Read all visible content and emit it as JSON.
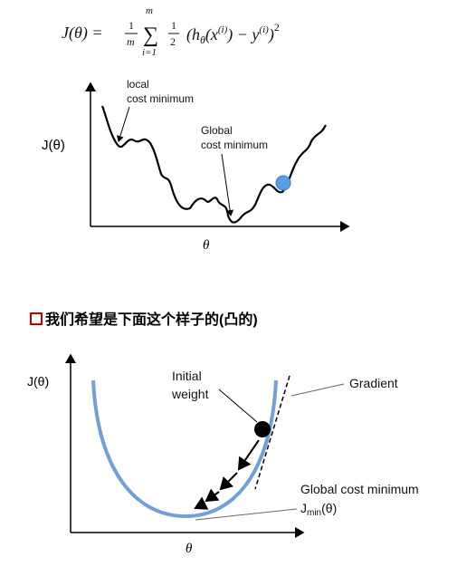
{
  "formula": {
    "lhs": "J(θ) =",
    "frac_num": "1",
    "frac_den": "m",
    "sum": "∑",
    "sum_upper": "m",
    "sum_lower": "i=1",
    "half_num": "1",
    "half_den": "2",
    "body": "(h",
    "body_sub": "θ",
    "body2": "(x",
    "sup1": "(i)",
    "body3": ") − y",
    "sup2": "(i)",
    "body4": ")",
    "power": "2"
  },
  "diagram1": {
    "y_axis_label": "J(θ)",
    "x_axis_label": "θ",
    "local_label": [
      "local",
      "cost minimum"
    ],
    "global_label": [
      "Global",
      "cost minimum"
    ]
  },
  "heading": "我们希望是下面这个样子的(凸的)",
  "diagram2": {
    "y_axis_label": "J(θ)",
    "x_axis_label": "θ",
    "initial_label": [
      "Initial",
      "weight"
    ],
    "gradient_label": "Gradient",
    "global_label": "Global cost minimum",
    "jmin": {
      "base": "J",
      "sub": "min",
      "arg": "(θ)"
    }
  }
}
